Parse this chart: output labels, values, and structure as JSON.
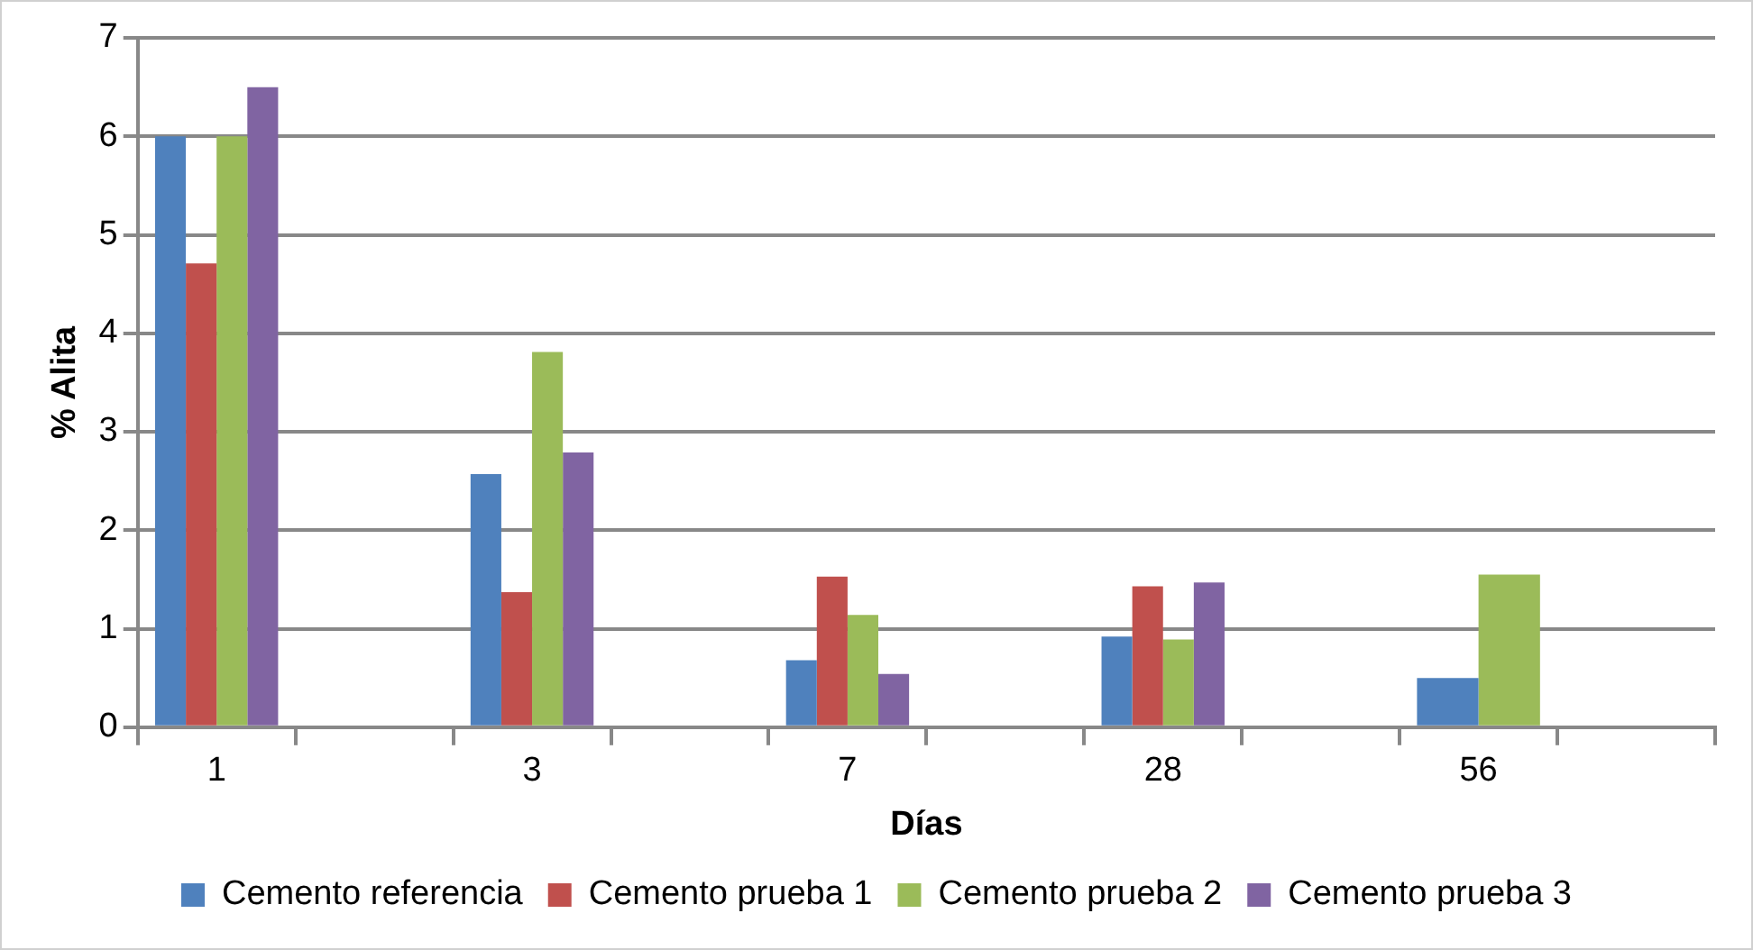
{
  "chart_data": {
    "type": "bar",
    "xlabel": "Días",
    "ylabel": "% Alita",
    "categories": [
      "1",
      null,
      "3",
      null,
      "7",
      null,
      "28",
      null,
      "56",
      null
    ],
    "series": [
      {
        "name": "Cemento referencia",
        "color": "#4f81bd",
        "values": [
          6.0,
          null,
          2.57,
          null,
          0.68,
          null,
          0.92,
          null,
          0.5,
          null
        ]
      },
      {
        "name": "Cemento prueba 1",
        "color": "#c0504d",
        "values": [
          4.71,
          null,
          1.37,
          null,
          1.53,
          null,
          1.43,
          null,
          null,
          null
        ]
      },
      {
        "name": "Cemento prueba 2",
        "color": "#9bbb59",
        "values": [
          6.0,
          null,
          3.81,
          null,
          1.14,
          null,
          0.89,
          null,
          1.55,
          null
        ]
      },
      {
        "name": "Cemento prueba 3",
        "color": "#8064a2",
        "values": [
          6.5,
          null,
          2.79,
          null,
          0.54,
          null,
          1.47,
          null,
          null,
          null
        ]
      }
    ],
    "ylim": [
      0,
      7
    ],
    "yticks": [
      0,
      1,
      2,
      3,
      4,
      5,
      6,
      7
    ],
    "grid": "y",
    "legend": "bottom"
  }
}
